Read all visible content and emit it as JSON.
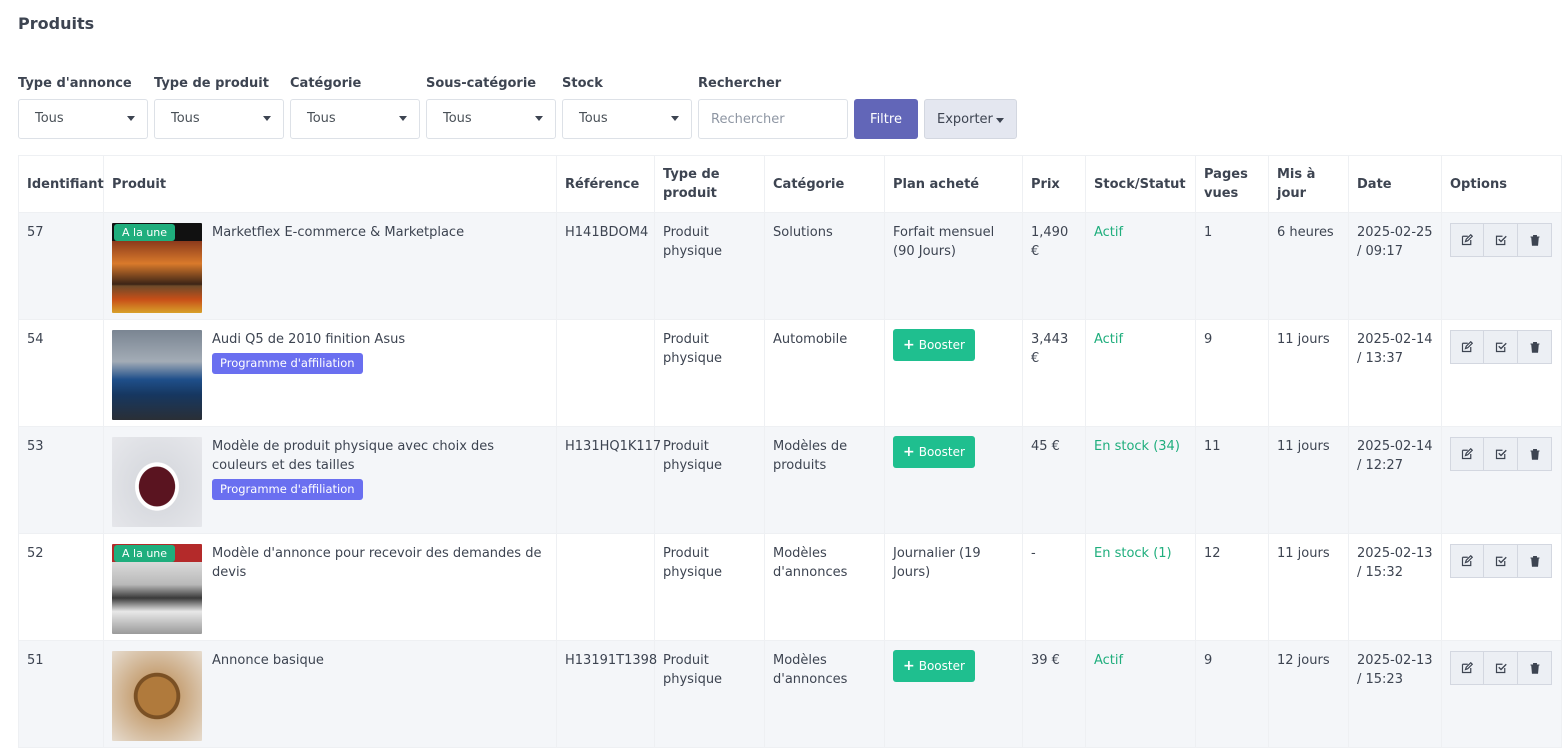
{
  "page": {
    "title": "Produits"
  },
  "filters": {
    "ad_type": {
      "label": "Type d'annonce",
      "value": "Tous"
    },
    "product_type": {
      "label": "Type de produit",
      "value": "Tous"
    },
    "category": {
      "label": "Catégorie",
      "value": "Tous"
    },
    "subcategory": {
      "label": "Sous-catégorie",
      "value": "Tous"
    },
    "stock": {
      "label": "Stock",
      "value": "Tous"
    },
    "search": {
      "label": "Rechercher",
      "placeholder": "Rechercher",
      "value": ""
    },
    "filter_button": "Filtre",
    "export_button": "Exporter"
  },
  "table": {
    "headers": {
      "id": "Identifiant",
      "product": "Produit",
      "reference": "Référence",
      "type": "Type de produit",
      "category": "Catégorie",
      "plan": "Plan acheté",
      "price": "Prix",
      "status": "Stock/Statut",
      "views": "Pages vues",
      "updated": "Mis à jour",
      "date": "Date",
      "options": "Options"
    },
    "rows": [
      {
        "id": "57",
        "title": "Marketflex E-commerce & Marketplace",
        "featured": "A la une",
        "affiliate": "",
        "reference": "H141BDOM4",
        "type": "Produit physique",
        "category": "Solutions",
        "plan": "Forfait mensuel (90 Jours)",
        "boost": "",
        "price": "1,490 €",
        "status": "Actif",
        "views": "1",
        "updated": "6 heures",
        "date": "2025-02-25 / 09:17"
      },
      {
        "id": "54",
        "title": "Audi Q5 de 2010 finition Asus",
        "featured": "",
        "affiliate": "Programme d'affiliation",
        "reference": "",
        "type": "Produit physique",
        "category": "Automobile",
        "plan": "",
        "boost": "Booster",
        "price": "3,443 €",
        "status": "Actif",
        "views": "9",
        "updated": "11 jours",
        "date": "2025-02-14 / 13:37"
      },
      {
        "id": "53",
        "title": "Modèle de produit physique avec choix des couleurs et des tailles",
        "featured": "",
        "affiliate": "Programme d'affiliation",
        "reference": "H131HQ1K117",
        "type": "Produit physique",
        "category": "Modèles de produits",
        "plan": "",
        "boost": "Booster",
        "price": "45 €",
        "status": "En stock (34)",
        "views": "11",
        "updated": "11 jours",
        "date": "2025-02-14 / 12:27"
      },
      {
        "id": "52",
        "title": "Modèle d'annonce pour recevoir des demandes de devis",
        "featured": "A la une",
        "affiliate": "",
        "reference": "",
        "type": "Produit physique",
        "category": "Modèles d'annonces",
        "plan": "Journalier (19 Jours)",
        "boost": "",
        "price": "-",
        "status": "En stock (1)",
        "views": "12",
        "updated": "11 jours",
        "date": "2025-02-13 / 15:32"
      },
      {
        "id": "51",
        "title": "Annonce basique",
        "featured": "",
        "affiliate": "",
        "reference": "H13191T1398",
        "type": "Produit physique",
        "category": "Modèles d'annonces",
        "plan": "",
        "boost": "Booster",
        "price": "39 €",
        "status": "Actif",
        "views": "9",
        "updated": "12 jours",
        "date": "2025-02-13 / 15:23"
      }
    ]
  },
  "icons": {
    "edit": "edit-icon",
    "approve": "check-square-icon",
    "delete": "trash-icon"
  },
  "colors": {
    "primary": "#6266b8",
    "success": "#1fae7d",
    "boost": "#1fbf8f",
    "affiliate": "#6a6ff0"
  }
}
